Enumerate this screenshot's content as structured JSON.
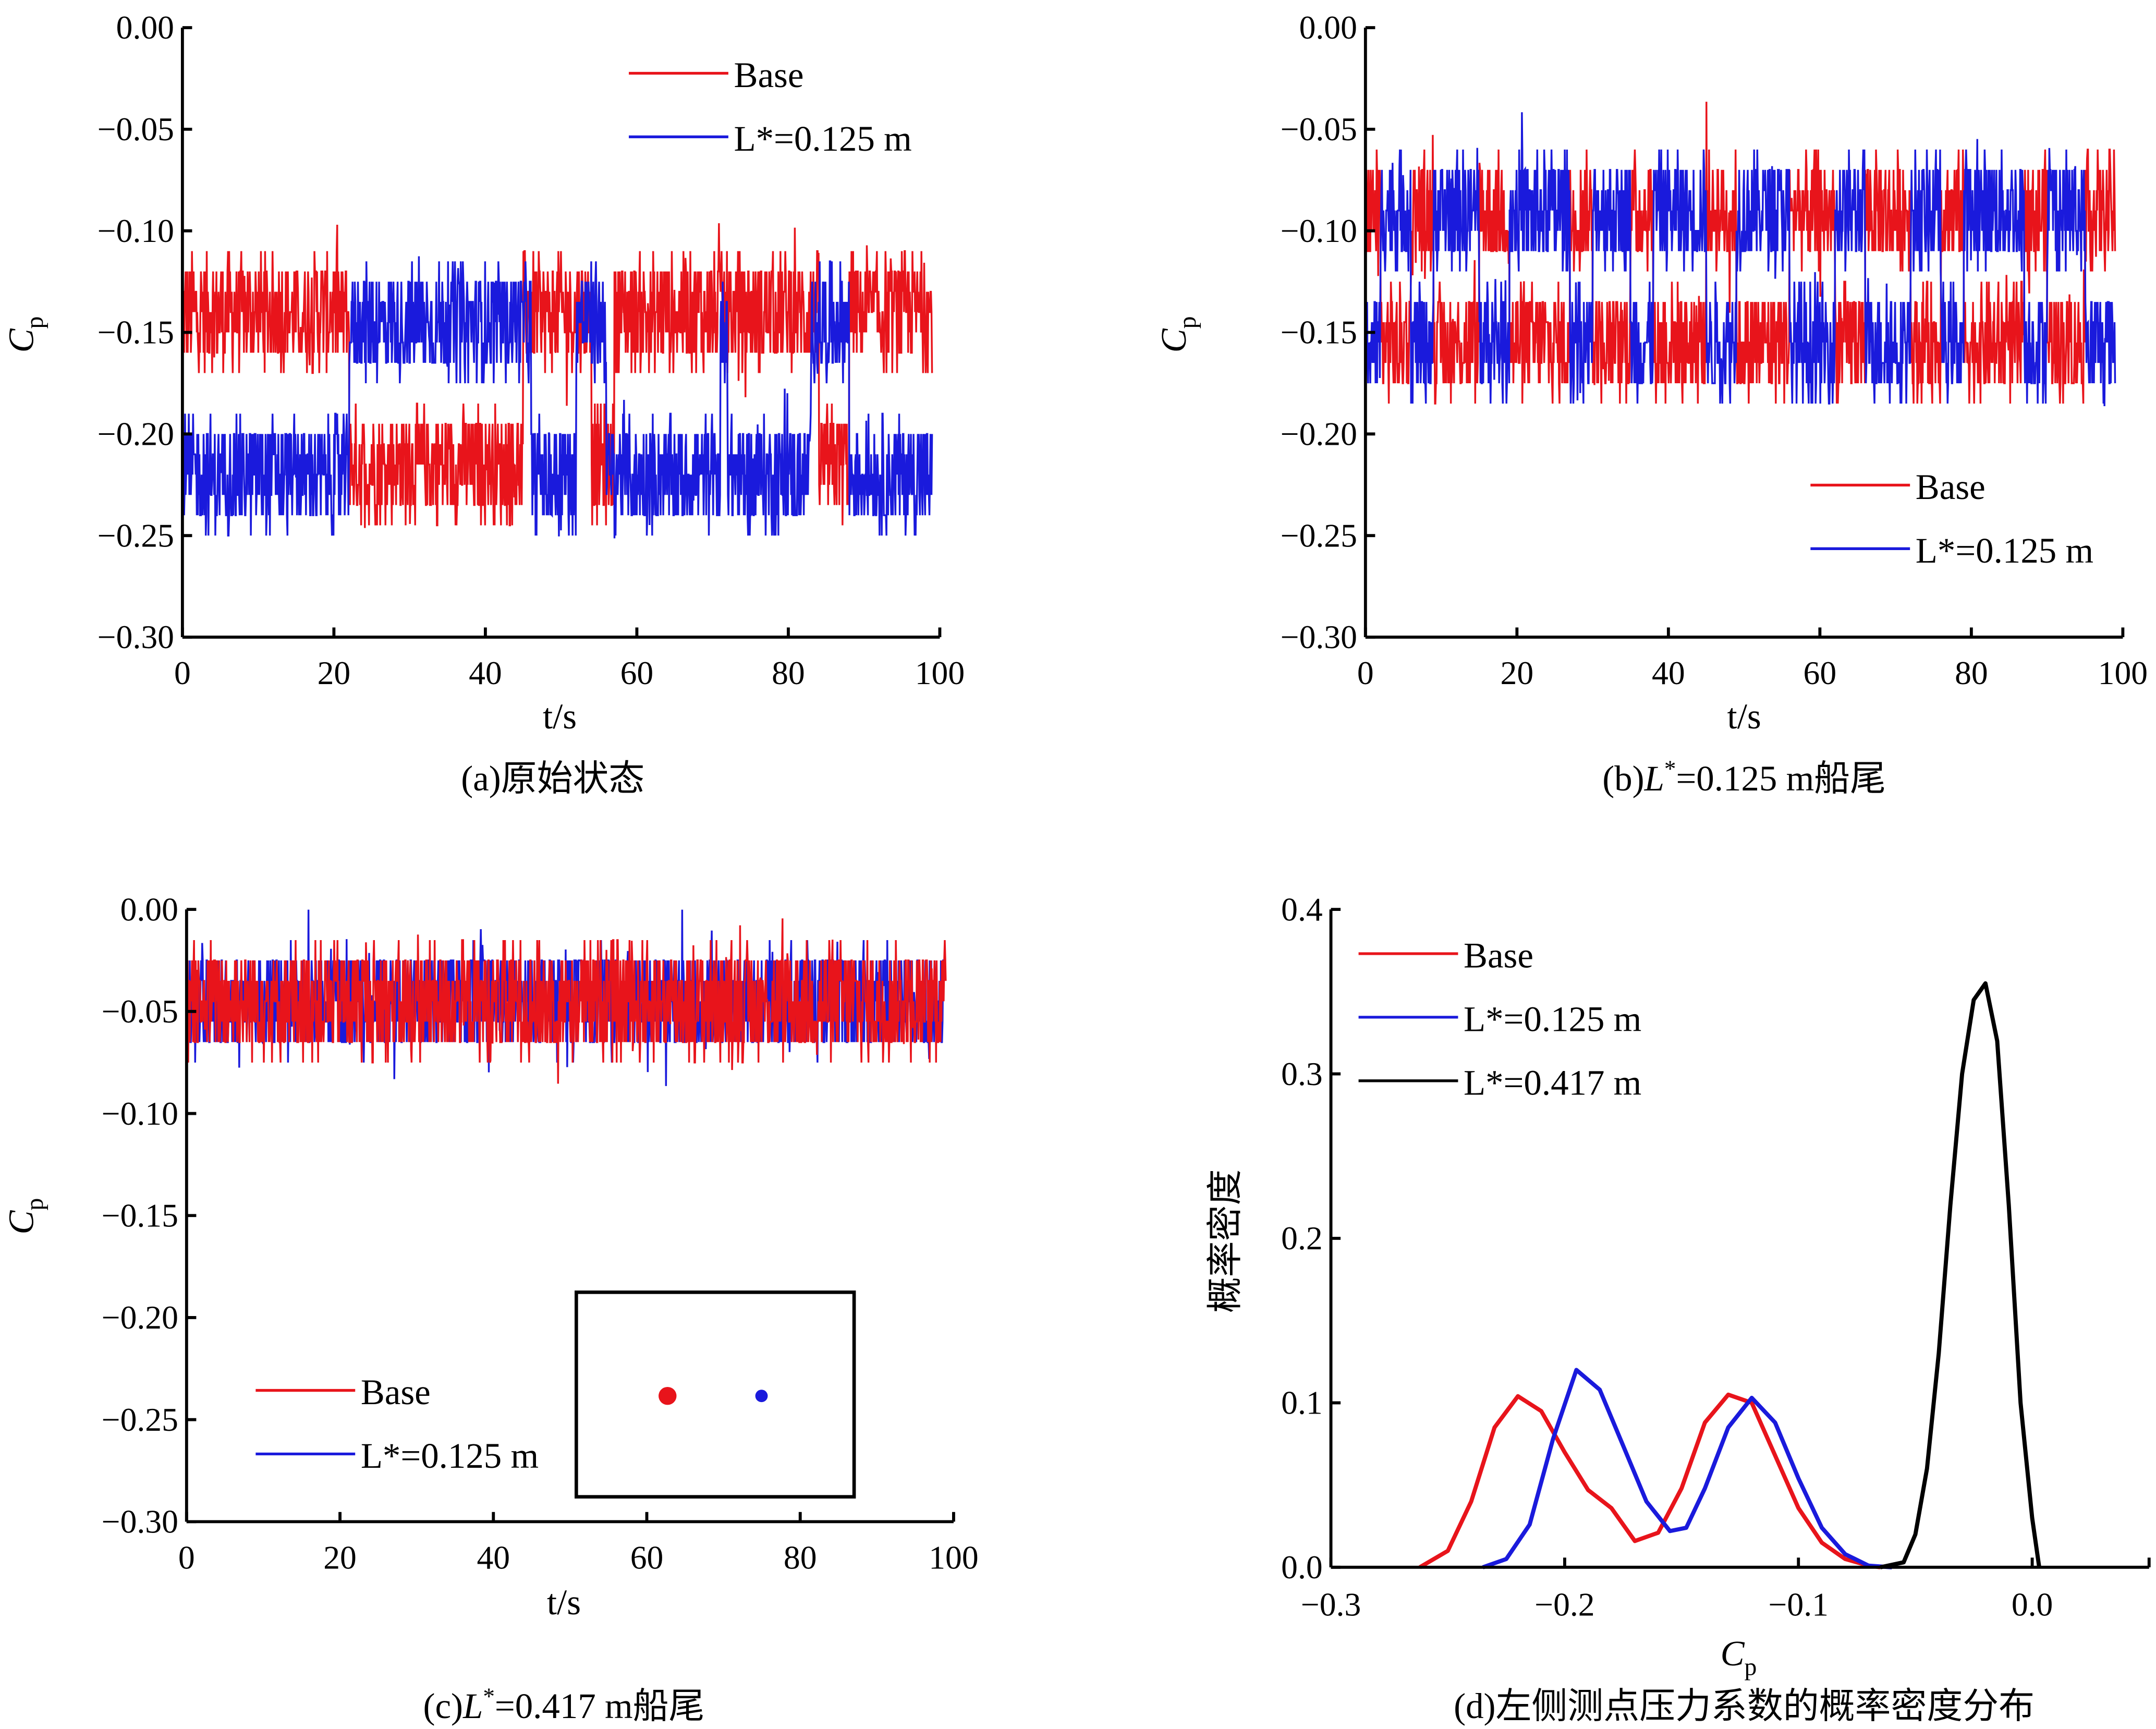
{
  "colors": {
    "base": "#e8141b",
    "l125": "#1a1adc",
    "l417": "#000000"
  },
  "chart_data": [
    {
      "id": "a",
      "type": "line",
      "caption": "(a)原始状态",
      "xlabel": "t/s",
      "ylabel": "Cp",
      "xlim": [
        0,
        100
      ],
      "ylim": [
        -0.3,
        0.0
      ],
      "xticks": [
        "0",
        "20",
        "40",
        "60",
        "80",
        "100"
      ],
      "yticks": [
        "0.00",
        "−0.05",
        "−0.10",
        "−0.15",
        "−0.20",
        "−0.25",
        "−0.30"
      ],
      "legend": {
        "placement": "top-right",
        "entries": [
          "Base",
          "L*=0.125 m"
        ]
      },
      "series": [
        {
          "name": "Base",
          "color": "base",
          "levels": [
            -0.14,
            -0.215
          ],
          "noise": 0.03,
          "segments": [
            [
              0,
              22,
              -0.14
            ],
            [
              22,
              45,
              -0.215
            ],
            [
              45,
              54,
              -0.14
            ],
            [
              54,
              57,
              -0.215
            ],
            [
              57,
              84,
              -0.14
            ],
            [
              84,
              88,
              -0.215
            ],
            [
              88,
              99,
              -0.14
            ]
          ]
        },
        {
          "name": "L*=0.125 m",
          "color": "l125",
          "levels": [
            -0.145,
            -0.22
          ],
          "noise": 0.03,
          "segments": [
            [
              0,
              22,
              -0.22
            ],
            [
              22,
              46,
              -0.145
            ],
            [
              46,
              52,
              -0.22
            ],
            [
              52,
              56,
              -0.145
            ],
            [
              56,
              71,
              -0.22
            ],
            [
              71,
              72,
              -0.145
            ],
            [
              72,
              83,
              -0.22
            ],
            [
              83,
              88,
              -0.145
            ],
            [
              88,
              99,
              -0.22
            ]
          ]
        }
      ]
    },
    {
      "id": "b",
      "type": "line",
      "caption": "(b)L*=0.125 m船尾",
      "xlabel": "t/s",
      "ylabel": "Cp",
      "xlim": [
        0,
        100
      ],
      "ylim": [
        -0.3,
        0.0
      ],
      "xticks": [
        "0",
        "20",
        "40",
        "60",
        "80",
        "100"
      ],
      "yticks": [
        "0.00",
        "−0.05",
        "−0.10",
        "−0.15",
        "−0.20",
        "−0.25",
        "−0.30"
      ],
      "legend": {
        "placement": "bottom-right",
        "entries": [
          "Base",
          "L*=0.125 m"
        ]
      },
      "series": [
        {
          "name": "Base",
          "color": "base",
          "noise": 0.03,
          "segments": [
            [
              0,
              2,
              -0.09
            ],
            [
              2,
              6,
              -0.155
            ],
            [
              6,
              9,
              -0.09
            ],
            [
              9,
              15,
              -0.155
            ],
            [
              15,
              19,
              -0.09
            ],
            [
              19,
              27,
              -0.155
            ],
            [
              27,
              30,
              -0.09
            ],
            [
              30,
              35,
              -0.155
            ],
            [
              35,
              38,
              -0.09
            ],
            [
              38,
              45,
              -0.155
            ],
            [
              45,
              49,
              -0.09
            ],
            [
              49,
              56,
              -0.155
            ],
            [
              56,
              62,
              -0.09
            ],
            [
              62,
              66,
              -0.155
            ],
            [
              66,
              72,
              -0.09
            ],
            [
              72,
              76,
              -0.155
            ],
            [
              76,
              79,
              -0.09
            ],
            [
              79,
              87,
              -0.155
            ],
            [
              87,
              90,
              -0.09
            ],
            [
              90,
              95,
              -0.155
            ],
            [
              95,
              99,
              -0.09
            ]
          ]
        },
        {
          "name": "L*=0.125 m",
          "color": "l125",
          "noise": 0.03,
          "segments": [
            [
              0,
              2,
              -0.155
            ],
            [
              2,
              6,
              -0.09
            ],
            [
              6,
              9,
              -0.155
            ],
            [
              9,
              15,
              -0.09
            ],
            [
              15,
              19,
              -0.155
            ],
            [
              19,
              27,
              -0.09
            ],
            [
              27,
              30,
              -0.155
            ],
            [
              30,
              35,
              -0.09
            ],
            [
              35,
              38,
              -0.155
            ],
            [
              38,
              45,
              -0.09
            ],
            [
              45,
              49,
              -0.155
            ],
            [
              49,
              56,
              -0.09
            ],
            [
              56,
              62,
              -0.155
            ],
            [
              62,
              66,
              -0.09
            ],
            [
              66,
              72,
              -0.155
            ],
            [
              72,
              76,
              -0.09
            ],
            [
              76,
              79,
              -0.155
            ],
            [
              79,
              87,
              -0.09
            ],
            [
              87,
              90,
              -0.155
            ],
            [
              90,
              95,
              -0.09
            ],
            [
              95,
              99,
              -0.155
            ]
          ]
        }
      ]
    },
    {
      "id": "c",
      "type": "line",
      "caption": "(c)L*=0.417 m船尾",
      "xlabel": "t/s",
      "ylabel": "Cp",
      "xlim": [
        0,
        100
      ],
      "ylim": [
        -0.3,
        0.0
      ],
      "xticks": [
        "0",
        "20",
        "40",
        "60",
        "80",
        "100"
      ],
      "yticks": [
        "0.00",
        "−0.05",
        "−0.10",
        "−0.15",
        "−0.20",
        "−0.25",
        "−0.30"
      ],
      "legend": {
        "placement": "bottom-left",
        "entries": [
          "Base",
          "L*=0.125 m"
        ]
      },
      "inset": {
        "markers": [
          "base",
          "l125"
        ]
      },
      "series": [
        {
          "name": "L*=0.125 m",
          "color": "l125",
          "noise": 0.028,
          "segments": [
            [
              0,
              99,
              -0.045
            ]
          ]
        },
        {
          "name": "Base",
          "color": "base",
          "noise": 0.03,
          "segments": [
            [
              0,
              99,
              -0.045
            ]
          ]
        }
      ]
    },
    {
      "id": "d",
      "type": "line",
      "caption": "(d)左侧测点压力系数的概率密度分布",
      "xlabel": "Cp",
      "ylabel": "概率密度",
      "xlim": [
        -0.3,
        0.05
      ],
      "ylim": [
        0,
        0.4
      ],
      "xticks": [
        "−0.3",
        "−0.2",
        "−0.1",
        "0.0"
      ],
      "yticks": [
        "0.0",
        "0.1",
        "0.2",
        "0.3",
        "0.4"
      ],
      "legend": {
        "placement": "top-left",
        "entries": [
          "Base",
          "L*=0.125 m",
          "L*=0.417 m"
        ]
      },
      "series": [
        {
          "name": "Base",
          "color": "base",
          "points": [
            [
              -0.262,
              0
            ],
            [
              -0.25,
              0.01
            ],
            [
              -0.24,
              0.04
            ],
            [
              -0.23,
              0.085
            ],
            [
              -0.22,
              0.104
            ],
            [
              -0.21,
              0.095
            ],
            [
              -0.2,
              0.07
            ],
            [
              -0.19,
              0.047
            ],
            [
              -0.18,
              0.036
            ],
            [
              -0.17,
              0.016
            ],
            [
              -0.16,
              0.021
            ],
            [
              -0.15,
              0.048
            ],
            [
              -0.14,
              0.088
            ],
            [
              -0.13,
              0.105
            ],
            [
              -0.12,
              0.1
            ],
            [
              -0.11,
              0.068
            ],
            [
              -0.1,
              0.036
            ],
            [
              -0.09,
              0.015
            ],
            [
              -0.08,
              0.005
            ],
            [
              -0.07,
              0.001
            ],
            [
              -0.065,
              0
            ]
          ]
        },
        {
          "name": "L*=0.125 m",
          "color": "l125",
          "points": [
            [
              -0.235,
              0
            ],
            [
              -0.225,
              0.005
            ],
            [
              -0.215,
              0.026
            ],
            [
              -0.205,
              0.078
            ],
            [
              -0.195,
              0.12
            ],
            [
              -0.185,
              0.108
            ],
            [
              -0.175,
              0.074
            ],
            [
              -0.165,
              0.04
            ],
            [
              -0.155,
              0.022
            ],
            [
              -0.148,
              0.024
            ],
            [
              -0.14,
              0.048
            ],
            [
              -0.13,
              0.085
            ],
            [
              -0.12,
              0.103
            ],
            [
              -0.11,
              0.088
            ],
            [
              -0.1,
              0.054
            ],
            [
              -0.09,
              0.024
            ],
            [
              -0.08,
              0.008
            ],
            [
              -0.07,
              0.001
            ],
            [
              -0.06,
              0
            ]
          ]
        },
        {
          "name": "L*=0.417 m",
          "color": "l417",
          "points": [
            [
              -0.065,
              0
            ],
            [
              -0.055,
              0.003
            ],
            [
              -0.05,
              0.02
            ],
            [
              -0.045,
              0.06
            ],
            [
              -0.04,
              0.13
            ],
            [
              -0.035,
              0.22
            ],
            [
              -0.03,
              0.3
            ],
            [
              -0.025,
              0.345
            ],
            [
              -0.02,
              0.355
            ],
            [
              -0.015,
              0.32
            ],
            [
              -0.01,
              0.22
            ],
            [
              -0.005,
              0.1
            ],
            [
              0,
              0.03
            ],
            [
              0.003,
              0
            ]
          ]
        }
      ]
    }
  ]
}
